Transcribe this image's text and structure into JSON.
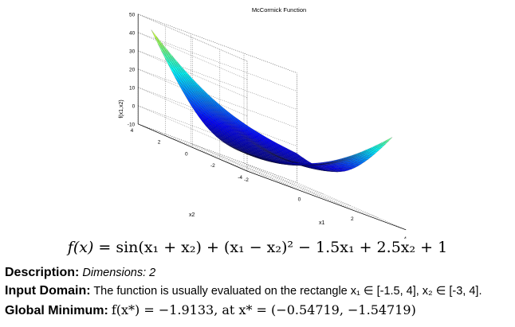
{
  "chart_data": {
    "type": "surface",
    "title": "McCormick Function",
    "xlabel": "x1",
    "ylabel": "x2",
    "zlabel": "f(x1,x2)",
    "xlim": [
      -2,
      4
    ],
    "ylim": [
      -4,
      4
    ],
    "zlim": [
      -10,
      50
    ],
    "x_ticks": [
      "-2",
      "0",
      "2",
      "4"
    ],
    "y_ticks": [
      "-4",
      "-2",
      "0",
      "2",
      "4"
    ],
    "z_ticks": [
      "-10",
      "0",
      "10",
      "20",
      "30",
      "40",
      "50"
    ],
    "domain": {
      "x1": [
        -1.5,
        4
      ],
      "x2": [
        -3,
        4
      ]
    },
    "function": "sin(x1+x2) + (x1-x2)^2 - 1.5*x1 + 2.5*x2 + 1",
    "grid": true,
    "colormap": "jet"
  },
  "formula": {
    "lhs": "f(x) = ",
    "rhs": "sin(x₁ + x₂) + (x₁ − x₂)² − 1.5x₁ + 2.5x₂ + 1"
  },
  "description": {
    "label": "Description:",
    "value": "Dimensions: 2"
  },
  "input_domain": {
    "label": "Input Domain:",
    "text": "The function is usually evaluated on the rectangle x₁ ∈ [-1.5, 4], x₂ ∈ [-3, 4]."
  },
  "global_minimum": {
    "label": "Global Minimum:",
    "value": "f(x*) = −1.9133, at x* = (−0.54719, −1.54719)"
  },
  "colors": {
    "background": "#ffffff",
    "axis": "#000000",
    "grid": "#555555"
  }
}
